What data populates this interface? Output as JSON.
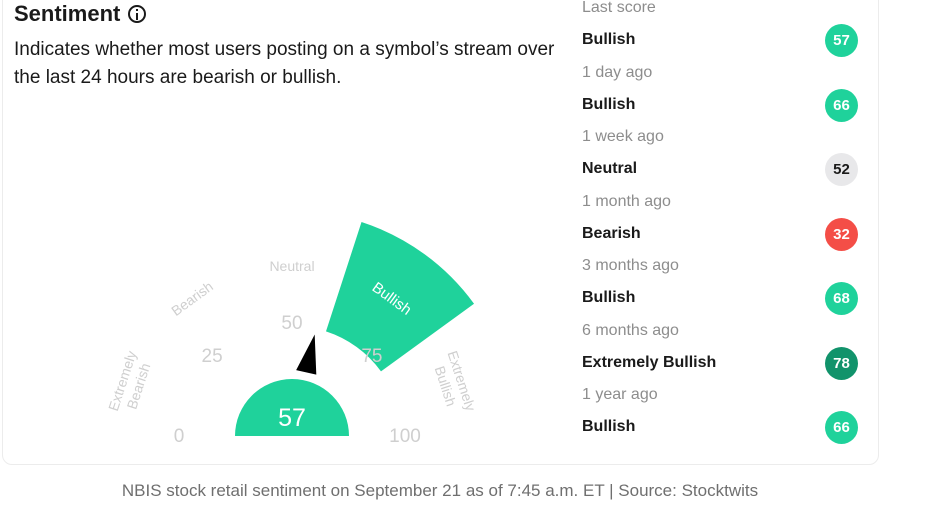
{
  "widget": {
    "title": "Sentiment",
    "description": "Indicates whether most users posting on a symbol’s stream over the last 24 hours are bearish or bullish."
  },
  "gauge": {
    "score": 57,
    "current_label": "Bullish",
    "zones": [
      "Extremely Bearish",
      "Bearish",
      "Neutral",
      "Bullish",
      "Extremely Bullish"
    ],
    "ticks": [
      "0",
      "25",
      "50",
      "75",
      "100"
    ],
    "colors": {
      "accent": "#1fd29b",
      "needle": "#000000",
      "muted": "#cfcfcf"
    }
  },
  "history": [
    {
      "time": "Last score",
      "label": "Bullish",
      "score": "57",
      "color": "#1fd29b",
      "text_color": "#ffffff"
    },
    {
      "time": "1 day ago",
      "label": "Bullish",
      "score": "66",
      "color": "#1fd29b",
      "text_color": "#ffffff"
    },
    {
      "time": "1 week ago",
      "label": "Neutral",
      "score": "52",
      "color": "#e8e8ea",
      "text_color": "#1a1a1a"
    },
    {
      "time": "1 month ago",
      "label": "Bearish",
      "score": "32",
      "color": "#f44e47",
      "text_color": "#ffffff"
    },
    {
      "time": "3 months ago",
      "label": "Bullish",
      "score": "68",
      "color": "#1fd29b",
      "text_color": "#ffffff"
    },
    {
      "time": "6 months ago",
      "label": "Extremely Bullish",
      "score": "78",
      "color": "#11936b",
      "text_color": "#ffffff"
    },
    {
      "time": "1 year ago",
      "label": "Bullish",
      "score": "66",
      "color": "#1fd29b",
      "text_color": "#ffffff"
    }
  ],
  "footer": {
    "caption": "NBIS stock retail sentiment on September 21 as of 7:45 a.m. ET | Source: Stocktwits"
  }
}
